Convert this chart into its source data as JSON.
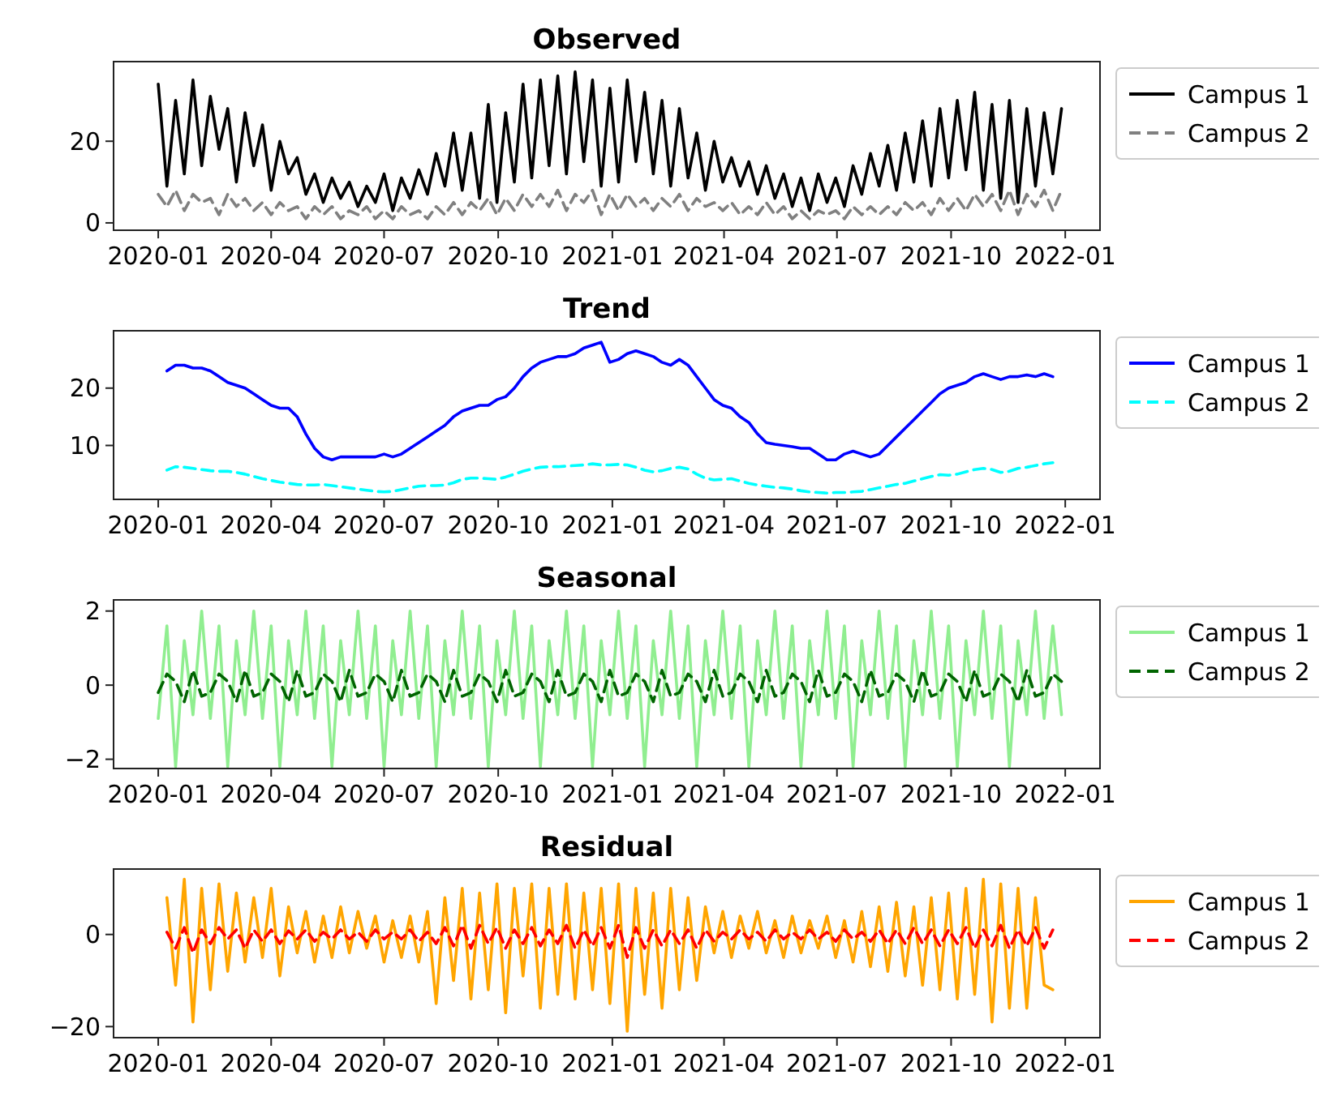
{
  "chart_data": [
    {
      "type": "line",
      "title": "Observed",
      "legend": "right",
      "grid": false,
      "xlim": [
        "2019-11-26",
        "2022-01-29"
      ],
      "xticks": [
        "2020-01",
        "2020-04",
        "2020-07",
        "2020-10",
        "2021-01",
        "2021-04",
        "2021-07",
        "2021-10",
        "2022-01"
      ],
      "ylim": [
        -1.8,
        39.5
      ],
      "yticks": [
        0,
        20
      ],
      "x": [
        "2020-01-01",
        "2020-01-08",
        "2020-01-15",
        "2020-01-22",
        "2020-01-29",
        "2020-02-05",
        "2020-02-12",
        "2020-02-19",
        "2020-02-26",
        "2020-03-04",
        "2020-03-11",
        "2020-03-18",
        "2020-03-25",
        "2020-04-01",
        "2020-04-08",
        "2020-04-15",
        "2020-04-22",
        "2020-04-29",
        "2020-05-06",
        "2020-05-13",
        "2020-05-20",
        "2020-05-27",
        "2020-06-03",
        "2020-06-10",
        "2020-06-17",
        "2020-06-24",
        "2020-07-01",
        "2020-07-08",
        "2020-07-15",
        "2020-07-22",
        "2020-07-29",
        "2020-08-05",
        "2020-08-12",
        "2020-08-19",
        "2020-08-26",
        "2020-09-02",
        "2020-09-09",
        "2020-09-16",
        "2020-09-23",
        "2020-09-30",
        "2020-10-07",
        "2020-10-14",
        "2020-10-21",
        "2020-10-28",
        "2020-11-04",
        "2020-11-11",
        "2020-11-18",
        "2020-11-25",
        "2020-12-02",
        "2020-12-09",
        "2020-12-16",
        "2020-12-23",
        "2020-12-30",
        "2021-01-06",
        "2021-01-13",
        "2021-01-20",
        "2021-01-27",
        "2021-02-03",
        "2021-02-10",
        "2021-02-17",
        "2021-02-24",
        "2021-03-03",
        "2021-03-10",
        "2021-03-17",
        "2021-03-24",
        "2021-03-31",
        "2021-04-07",
        "2021-04-14",
        "2021-04-21",
        "2021-04-28",
        "2021-05-05",
        "2021-05-12",
        "2021-05-19",
        "2021-05-26",
        "2021-06-02",
        "2021-06-09",
        "2021-06-16",
        "2021-06-23",
        "2021-06-30",
        "2021-07-07",
        "2021-07-14",
        "2021-07-21",
        "2021-07-28",
        "2021-08-04",
        "2021-08-11",
        "2021-08-18",
        "2021-08-25",
        "2021-09-01",
        "2021-09-08",
        "2021-09-15",
        "2021-09-22",
        "2021-09-29",
        "2021-10-06",
        "2021-10-13",
        "2021-10-20",
        "2021-10-27",
        "2021-11-03",
        "2021-11-10",
        "2021-11-17",
        "2021-11-24",
        "2021-12-01",
        "2021-12-08",
        "2021-12-15",
        "2021-12-22",
        "2021-12-29"
      ],
      "series": [
        {
          "name": "Campus 1",
          "color": "#000000",
          "line_style": "solid",
          "values": [
            34,
            9,
            30,
            12,
            35,
            14,
            31,
            18,
            28,
            10,
            27,
            14,
            24,
            8,
            20,
            12,
            16,
            7,
            12,
            5,
            11,
            6,
            10,
            4,
            9,
            5,
            12,
            3,
            11,
            6,
            13,
            7,
            17,
            9,
            22,
            8,
            22,
            6,
            29,
            5,
            27,
            10,
            34,
            11,
            35,
            14,
            36,
            12,
            37,
            15,
            35,
            9,
            33,
            10,
            35,
            15,
            32,
            12,
            30,
            9,
            28,
            11,
            22,
            8,
            20,
            10,
            16,
            9,
            15,
            7,
            14,
            6,
            12,
            4,
            11,
            3,
            12,
            5,
            11,
            4,
            14,
            7,
            17,
            9,
            19,
            8,
            22,
            10,
            25,
            9,
            28,
            11,
            30,
            13,
            32,
            8,
            29,
            6,
            30,
            5,
            28,
            9,
            27,
            12,
            28
          ]
        },
        {
          "name": "Campus 2",
          "color": "#808080",
          "line_style": "dashed",
          "values": [
            7,
            4,
            8,
            3,
            7,
            5,
            6,
            2,
            7,
            4,
            6,
            3,
            5,
            2,
            5,
            3,
            4,
            1,
            4,
            2,
            4,
            1,
            3,
            2,
            4,
            1,
            3,
            1,
            4,
            2,
            3,
            1,
            4,
            2,
            5,
            2,
            5,
            3,
            6,
            2,
            6,
            3,
            7,
            4,
            7,
            4,
            8,
            3,
            7,
            5,
            8,
            2,
            7,
            3,
            7,
            4,
            6,
            3,
            6,
            4,
            7,
            3,
            6,
            4,
            5,
            3,
            5,
            2,
            4,
            2,
            5,
            2,
            4,
            1,
            3,
            1,
            3,
            2,
            3,
            1,
            4,
            2,
            4,
            2,
            4,
            2,
            5,
            3,
            5,
            2,
            6,
            3,
            6,
            3,
            7,
            4,
            7,
            3,
            8,
            2,
            7,
            4,
            8,
            3,
            8
          ]
        }
      ]
    },
    {
      "type": "line",
      "title": "Trend",
      "legend": "right",
      "grid": false,
      "xlim": [
        "2019-11-26",
        "2022-01-29"
      ],
      "xticks": [
        "2020-01",
        "2020-04",
        "2020-07",
        "2020-10",
        "2021-01",
        "2021-04",
        "2021-07",
        "2021-10",
        "2022-01"
      ],
      "ylim": [
        0.6,
        30
      ],
      "yticks": [
        10,
        20
      ],
      "x": [
        "2020-01-08",
        "2020-01-15",
        "2020-01-22",
        "2020-01-29",
        "2020-02-05",
        "2020-02-12",
        "2020-02-19",
        "2020-02-26",
        "2020-03-04",
        "2020-03-11",
        "2020-03-18",
        "2020-03-25",
        "2020-04-01",
        "2020-04-08",
        "2020-04-15",
        "2020-04-22",
        "2020-04-29",
        "2020-05-06",
        "2020-05-13",
        "2020-05-20",
        "2020-05-27",
        "2020-06-03",
        "2020-06-10",
        "2020-06-17",
        "2020-06-24",
        "2020-07-01",
        "2020-07-08",
        "2020-07-15",
        "2020-07-22",
        "2020-07-29",
        "2020-08-05",
        "2020-08-12",
        "2020-08-19",
        "2020-08-26",
        "2020-09-02",
        "2020-09-09",
        "2020-09-16",
        "2020-09-23",
        "2020-09-30",
        "2020-10-07",
        "2020-10-14",
        "2020-10-21",
        "2020-10-28",
        "2020-11-04",
        "2020-11-11",
        "2020-11-18",
        "2020-11-25",
        "2020-12-02",
        "2020-12-09",
        "2020-12-16",
        "2020-12-23",
        "2020-12-30",
        "2021-01-06",
        "2021-01-13",
        "2021-01-20",
        "2021-01-27",
        "2021-02-03",
        "2021-02-10",
        "2021-02-17",
        "2021-02-24",
        "2021-03-03",
        "2021-03-10",
        "2021-03-17",
        "2021-03-24",
        "2021-03-31",
        "2021-04-07",
        "2021-04-14",
        "2021-04-21",
        "2021-04-28",
        "2021-05-05",
        "2021-05-12",
        "2021-05-19",
        "2021-05-26",
        "2021-06-02",
        "2021-06-09",
        "2021-06-16",
        "2021-06-23",
        "2021-06-30",
        "2021-07-07",
        "2021-07-14",
        "2021-07-21",
        "2021-07-28",
        "2021-08-04",
        "2021-08-11",
        "2021-08-18",
        "2021-08-25",
        "2021-09-01",
        "2021-09-08",
        "2021-09-15",
        "2021-09-22",
        "2021-09-29",
        "2021-10-06",
        "2021-10-13",
        "2021-10-20",
        "2021-10-27",
        "2021-11-03",
        "2021-11-10",
        "2021-11-17",
        "2021-11-24",
        "2021-12-01",
        "2021-12-08",
        "2021-12-15",
        "2021-12-22"
      ],
      "series": [
        {
          "name": "Campus 1",
          "color": "#0000ff",
          "line_style": "solid",
          "values": [
            23,
            24,
            24,
            23.5,
            23.5,
            23,
            22,
            21,
            20.5,
            20,
            19,
            18,
            17,
            16.5,
            16.5,
            15,
            12,
            9.5,
            8,
            7.5,
            8,
            8,
            8,
            8,
            8,
            8.5,
            8,
            8.5,
            9.5,
            10.5,
            11.5,
            12.5,
            13.5,
            15,
            16,
            16.5,
            17,
            17,
            18,
            18.5,
            20,
            22,
            23.5,
            24.5,
            25,
            25.5,
            25.5,
            26,
            27,
            27.5,
            28,
            24.5,
            25,
            26,
            26.5,
            26,
            25.5,
            24.5,
            24,
            25,
            24,
            22,
            20,
            18,
            17,
            16.5,
            15,
            14,
            12,
            10.5,
            10.2,
            10,
            9.8,
            9.5,
            9.5,
            8.5,
            7.5,
            7.5,
            8.5,
            9,
            8.5,
            8,
            8.5,
            10,
            11.5,
            13,
            14.5,
            16,
            17.5,
            19,
            20,
            20.5,
            21,
            22,
            22.5,
            22,
            21.5,
            22,
            22,
            22.3,
            22,
            22.5,
            22
          ]
        },
        {
          "name": "Campus 2",
          "color": "#00ffff",
          "line_style": "dashed",
          "values": [
            5.7,
            6.3,
            6.2,
            6,
            5.8,
            5.6,
            5.5,
            5.5,
            5.3,
            5,
            4.6,
            4.2,
            3.9,
            3.6,
            3.4,
            3.2,
            3.1,
            3.1,
            3.2,
            3,
            2.8,
            2.6,
            2.4,
            2.2,
            2,
            1.9,
            2,
            2.3,
            2.6,
            2.9,
            3,
            3,
            3.1,
            3.5,
            4.1,
            4.3,
            4.3,
            4.2,
            4.1,
            4.5,
            5,
            5.5,
            5.9,
            6.2,
            6.3,
            6.3,
            6.4,
            6.5,
            6.6,
            6.8,
            6.6,
            6.6,
            6.7,
            6.6,
            6.2,
            5.7,
            5.4,
            5.6,
            6,
            6.2,
            5.9,
            5,
            4.3,
            4,
            4.1,
            4.2,
            3.8,
            3.4,
            3.1,
            2.9,
            2.7,
            2.6,
            2.4,
            2.1,
            1.9,
            1.8,
            1.7,
            1.8,
            1.8,
            1.9,
            2,
            2.3,
            2.6,
            2.9,
            3.2,
            3.4,
            3.8,
            4.2,
            4.6,
            4.9,
            4.8,
            5,
            5.4,
            5.8,
            6,
            5.8,
            5.3,
            5.5,
            6,
            6.2,
            6.5,
            6.8,
            7
          ]
        }
      ]
    },
    {
      "type": "line",
      "title": "Seasonal",
      "legend": "right",
      "grid": false,
      "xlim": [
        "2019-11-26",
        "2022-01-29"
      ],
      "xticks": [
        "2020-01",
        "2020-04",
        "2020-07",
        "2020-10",
        "2021-01",
        "2021-04",
        "2021-07",
        "2021-10",
        "2022-01"
      ],
      "ylim": [
        -2.25,
        2.3
      ],
      "yticks": [
        {
          "value": -2,
          "label": "−2"
        },
        0,
        2
      ],
      "x": [
        "2020-01-01",
        "2020-01-08",
        "2020-01-15",
        "2020-01-22",
        "2020-01-29",
        "2020-02-05",
        "2020-02-12",
        "2020-02-19",
        "2020-02-26",
        "2020-03-04",
        "2020-03-11",
        "2020-03-18",
        "2020-03-25",
        "2020-04-01",
        "2020-04-08",
        "2020-04-15",
        "2020-04-22",
        "2020-04-29",
        "2020-05-06",
        "2020-05-13",
        "2020-05-20",
        "2020-05-27",
        "2020-06-03",
        "2020-06-10",
        "2020-06-17",
        "2020-06-24",
        "2020-07-01",
        "2020-07-08",
        "2020-07-15",
        "2020-07-22",
        "2020-07-29",
        "2020-08-05",
        "2020-08-12",
        "2020-08-19",
        "2020-08-26",
        "2020-09-02",
        "2020-09-09",
        "2020-09-16",
        "2020-09-23",
        "2020-09-30",
        "2020-10-07",
        "2020-10-14",
        "2020-10-21",
        "2020-10-28",
        "2020-11-04",
        "2020-11-11",
        "2020-11-18",
        "2020-11-25",
        "2020-12-02",
        "2020-12-09",
        "2020-12-16",
        "2020-12-23",
        "2020-12-30",
        "2021-01-06",
        "2021-01-13",
        "2021-01-20",
        "2021-01-27",
        "2021-02-03",
        "2021-02-10",
        "2021-02-17",
        "2021-02-24",
        "2021-03-03",
        "2021-03-10",
        "2021-03-17",
        "2021-03-24",
        "2021-03-31",
        "2021-04-07",
        "2021-04-14",
        "2021-04-21",
        "2021-04-28",
        "2021-05-05",
        "2021-05-12",
        "2021-05-19",
        "2021-05-26",
        "2021-06-02",
        "2021-06-09",
        "2021-06-16",
        "2021-06-23",
        "2021-06-30",
        "2021-07-07",
        "2021-07-14",
        "2021-07-21",
        "2021-07-28",
        "2021-08-04",
        "2021-08-11",
        "2021-08-18",
        "2021-08-25",
        "2021-09-01",
        "2021-09-08",
        "2021-09-15",
        "2021-09-22",
        "2021-09-29",
        "2021-10-06",
        "2021-10-13",
        "2021-10-20",
        "2021-10-27",
        "2021-11-03",
        "2021-11-10",
        "2021-11-17",
        "2021-11-24",
        "2021-12-01",
        "2021-12-08",
        "2021-12-15",
        "2021-12-22",
        "2021-12-29"
      ],
      "series": [
        {
          "name": "Campus 1",
          "color": "#90ee90",
          "line_style": "solid",
          "values": [
            -0.9,
            1.6,
            -2.2,
            1.2,
            -0.8,
            2,
            -0.9,
            1.6,
            -2.2,
            1.2,
            -0.8,
            2,
            -0.9,
            1.6,
            -2.2,
            1.2,
            -0.8,
            2,
            -0.9,
            1.6,
            -2.2,
            1.2,
            -0.8,
            2,
            -0.9,
            1.6,
            -2.2,
            1.2,
            -0.8,
            2,
            -0.9,
            1.6,
            -2.2,
            1.2,
            -0.8,
            2,
            -0.9,
            1.6,
            -2.2,
            1.2,
            -0.8,
            2,
            -0.9,
            1.6,
            -2.2,
            1.2,
            -0.8,
            2,
            -0.9,
            1.6,
            -2.2,
            1.2,
            -0.8,
            2,
            -0.9,
            1.6,
            -2.2,
            1.2,
            -0.8,
            2,
            -0.9,
            1.6,
            -2.2,
            1.2,
            -0.8,
            2,
            -0.9,
            1.6,
            -2.2,
            1.2,
            -0.8,
            2,
            -0.9,
            1.6,
            -2.2,
            1.2,
            -0.8,
            2,
            -0.9,
            1.6,
            -2.2,
            1.2,
            -0.8,
            2,
            -0.9,
            1.6,
            -2.2,
            1.2,
            -0.8,
            2,
            -0.9,
            1.6,
            -2.2,
            1.2,
            -0.8,
            2,
            -0.9,
            1.6,
            -2.2,
            1.2,
            -0.8,
            2,
            -0.9,
            1.6,
            -0.8
          ]
        },
        {
          "name": "Campus 2",
          "color": "#006400",
          "line_style": "dashed",
          "values": [
            -0.2,
            0.3,
            0.1,
            -0.45,
            0.4,
            -0.3,
            -0.2,
            0.3,
            0.1,
            -0.45,
            0.4,
            -0.3,
            -0.2,
            0.3,
            0.1,
            -0.45,
            0.4,
            -0.3,
            -0.2,
            0.3,
            0.1,
            -0.45,
            0.4,
            -0.3,
            -0.2,
            0.3,
            0.1,
            -0.45,
            0.4,
            -0.3,
            -0.2,
            0.3,
            0.1,
            -0.45,
            0.4,
            -0.3,
            -0.2,
            0.3,
            0.1,
            -0.45,
            0.4,
            -0.3,
            -0.2,
            0.3,
            0.1,
            -0.45,
            0.4,
            -0.3,
            -0.2,
            0.3,
            0.1,
            -0.45,
            0.4,
            -0.3,
            -0.2,
            0.3,
            0.1,
            -0.45,
            0.4,
            -0.3,
            -0.2,
            0.3,
            0.1,
            -0.45,
            0.4,
            -0.3,
            -0.2,
            0.3,
            0.1,
            -0.45,
            0.4,
            -0.3,
            -0.2,
            0.3,
            0.1,
            -0.45,
            0.4,
            -0.3,
            -0.2,
            0.3,
            0.1,
            -0.45,
            0.4,
            -0.3,
            -0.2,
            0.3,
            0.1,
            -0.45,
            0.4,
            -0.3,
            -0.2,
            0.3,
            0.1,
            -0.45,
            0.4,
            -0.3,
            -0.2,
            0.3,
            0.1,
            -0.45,
            0.4,
            -0.3,
            -0.2,
            0.3,
            0.1
          ]
        }
      ]
    },
    {
      "type": "line",
      "title": "Residual",
      "legend": "right",
      "grid": false,
      "xlim": [
        "2019-11-26",
        "2022-01-29"
      ],
      "xticks": [
        "2020-01",
        "2020-04",
        "2020-07",
        "2020-10",
        "2021-01",
        "2021-04",
        "2021-07",
        "2021-10",
        "2022-01"
      ],
      "ylim": [
        -22.4,
        14.2
      ],
      "yticks": [
        {
          "value": -20,
          "label": "−20"
        },
        0
      ],
      "x": [
        "2020-01-08",
        "2020-01-15",
        "2020-01-22",
        "2020-01-29",
        "2020-02-05",
        "2020-02-12",
        "2020-02-19",
        "2020-02-26",
        "2020-03-04",
        "2020-03-11",
        "2020-03-18",
        "2020-03-25",
        "2020-04-01",
        "2020-04-08",
        "2020-04-15",
        "2020-04-22",
        "2020-04-29",
        "2020-05-06",
        "2020-05-13",
        "2020-05-20",
        "2020-05-27",
        "2020-06-03",
        "2020-06-10",
        "2020-06-17",
        "2020-06-24",
        "2020-07-01",
        "2020-07-08",
        "2020-07-15",
        "2020-07-22",
        "2020-07-29",
        "2020-08-05",
        "2020-08-12",
        "2020-08-19",
        "2020-08-26",
        "2020-09-02",
        "2020-09-09",
        "2020-09-16",
        "2020-09-23",
        "2020-09-30",
        "2020-10-07",
        "2020-10-14",
        "2020-10-21",
        "2020-10-28",
        "2020-11-04",
        "2020-11-11",
        "2020-11-18",
        "2020-11-25",
        "2020-12-02",
        "2020-12-09",
        "2020-12-16",
        "2020-12-23",
        "2020-12-30",
        "2021-01-06",
        "2021-01-13",
        "2021-01-20",
        "2021-01-27",
        "2021-02-03",
        "2021-02-10",
        "2021-02-17",
        "2021-02-24",
        "2021-03-03",
        "2021-03-10",
        "2021-03-17",
        "2021-03-24",
        "2021-03-31",
        "2021-04-07",
        "2021-04-14",
        "2021-04-21",
        "2021-04-28",
        "2021-05-05",
        "2021-05-12",
        "2021-05-19",
        "2021-05-26",
        "2021-06-02",
        "2021-06-09",
        "2021-06-16",
        "2021-06-23",
        "2021-06-30",
        "2021-07-07",
        "2021-07-14",
        "2021-07-21",
        "2021-07-28",
        "2021-08-04",
        "2021-08-11",
        "2021-08-18",
        "2021-08-25",
        "2021-09-01",
        "2021-09-08",
        "2021-09-15",
        "2021-09-22",
        "2021-09-29",
        "2021-10-06",
        "2021-10-13",
        "2021-10-20",
        "2021-10-27",
        "2021-11-03",
        "2021-11-10",
        "2021-11-17",
        "2021-11-24",
        "2021-12-01",
        "2021-12-08",
        "2021-12-15",
        "2021-12-22"
      ],
      "series": [
        {
          "name": "Campus 1",
          "color": "#ffa500",
          "line_style": "solid",
          "values": [
            8,
            -11,
            12,
            -19,
            10,
            -12,
            11,
            -8,
            9,
            -6,
            8,
            -5,
            10,
            -9,
            6,
            -4,
            5,
            -6,
            4,
            -5,
            6,
            -4,
            5,
            -3,
            4,
            -6,
            3,
            -5,
            4,
            -6,
            5,
            -15,
            8,
            -10,
            10,
            -14,
            9,
            -12,
            11,
            -17,
            10,
            -9,
            11,
            -16,
            10,
            -13,
            11,
            -14,
            9,
            -12,
            10,
            -15,
            11,
            -21,
            10,
            -13,
            9,
            -16,
            10,
            -12,
            8,
            -10,
            6,
            -4,
            5,
            -5,
            4,
            -3,
            5,
            -4,
            3,
            -5,
            4,
            -4,
            3,
            -3,
            4,
            -5,
            3,
            -6,
            5,
            -7,
            6,
            -8,
            7,
            -9,
            6,
            -11,
            8,
            -12,
            9,
            -14,
            10,
            -13,
            12,
            -19,
            11,
            -16,
            10,
            -16,
            8,
            -11,
            -12
          ]
        },
        {
          "name": "Campus 2",
          "color": "#ff0000",
          "line_style": "dashed",
          "values": [
            0.5,
            -3,
            1.5,
            -4,
            1,
            -2,
            1.5,
            -1,
            1,
            -3,
            1,
            -1.5,
            1,
            -2,
            0.8,
            -1,
            1,
            -1.5,
            0.5,
            -1,
            1,
            -1,
            0.5,
            -1.5,
            1,
            -1,
            0.5,
            -1,
            1,
            -1.5,
            0.5,
            -2,
            1.5,
            -2.5,
            2,
            -3,
            2,
            -2,
            1.5,
            -3,
            1,
            -2,
            1.5,
            -2.5,
            1,
            -2,
            2,
            -3,
            1,
            -2.5,
            1.5,
            -3,
            2,
            -5,
            1.5,
            -3,
            1,
            -2.5,
            1,
            -2,
            1,
            -3,
            1,
            -1.5,
            0.5,
            -1,
            1,
            -1,
            0.5,
            -1.5,
            1,
            -1,
            0.5,
            -1,
            1,
            -1,
            0.5,
            -1.5,
            1,
            -1,
            0.5,
            -1.5,
            1,
            -2,
            1,
            -2,
            1.5,
            -2,
            1,
            -2.5,
            1,
            -2,
            1.5,
            -3,
            1,
            -2.5,
            2,
            -3,
            1,
            -2.5,
            1.5,
            -3,
            1
          ]
        }
      ]
    }
  ]
}
